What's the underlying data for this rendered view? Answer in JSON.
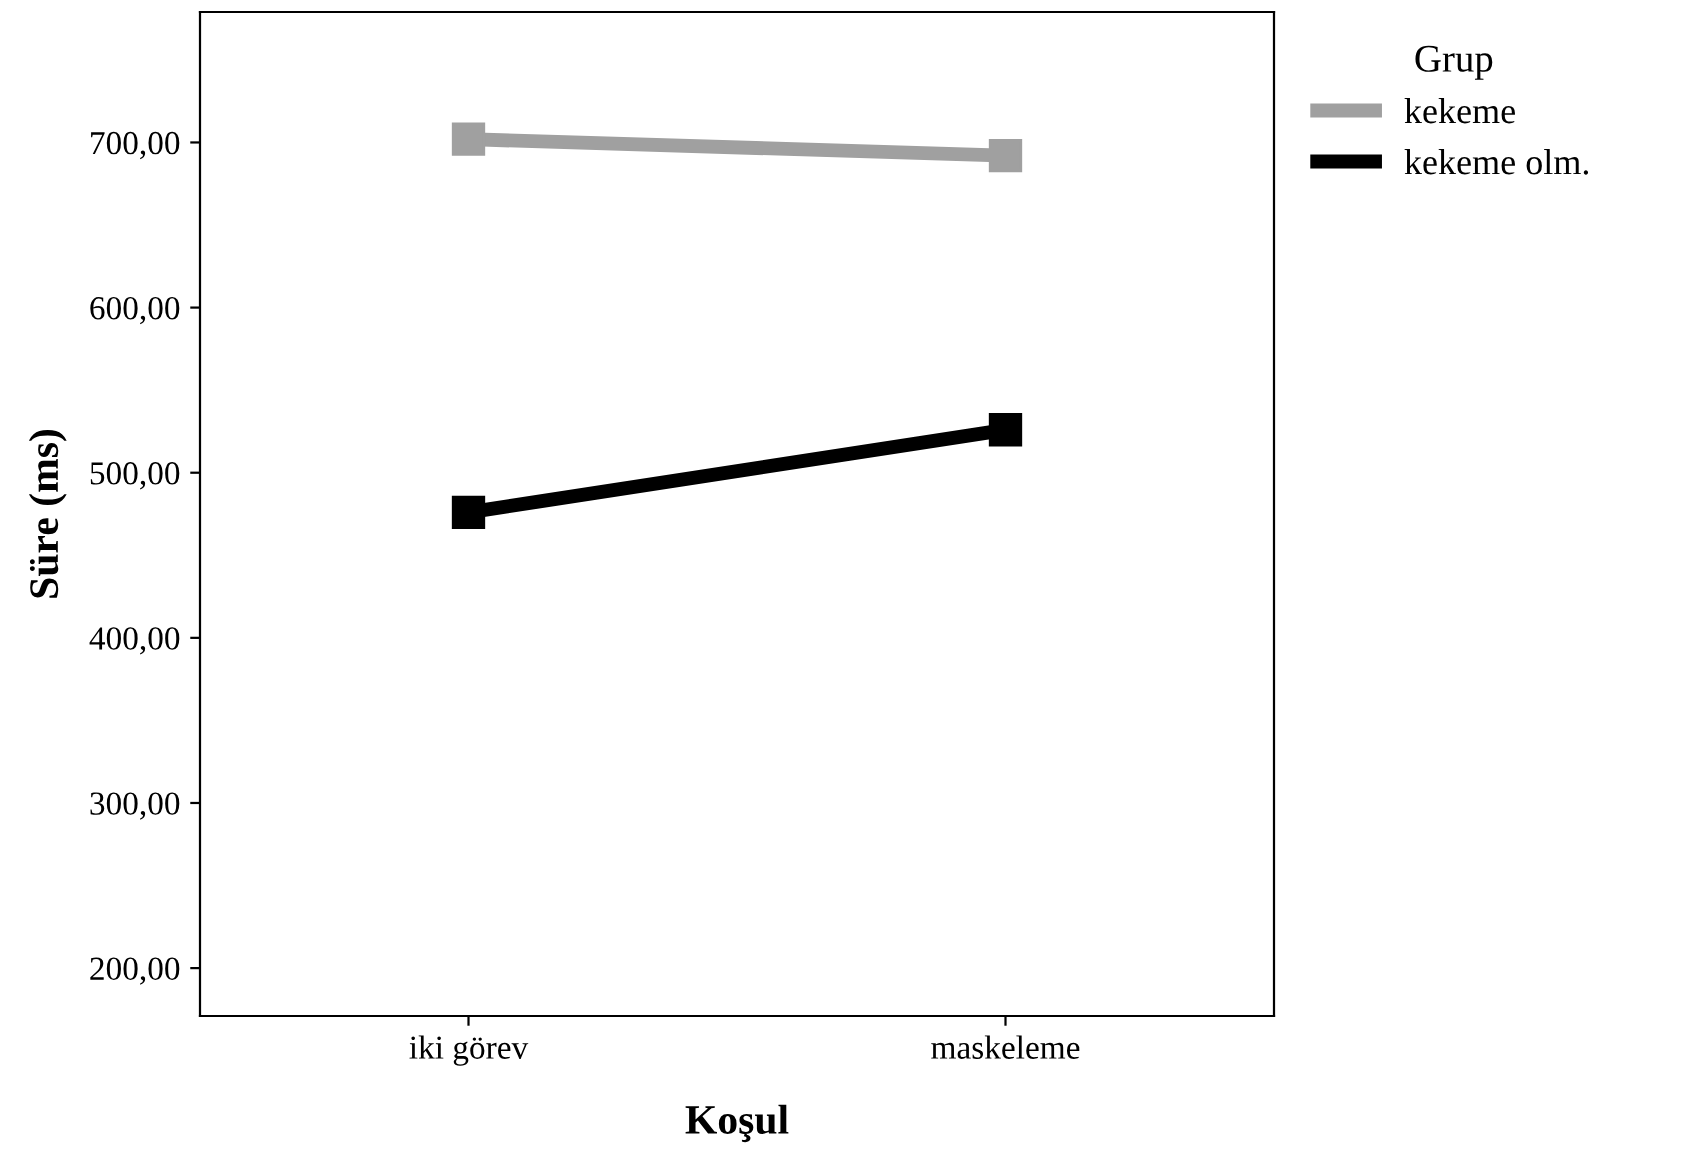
{
  "chart_data": {
    "type": "line",
    "xlabel": "Koşul",
    "ylabel": "Süre (ms)",
    "legend_title": "Grup",
    "categories": [
      "iki görev",
      "maskeleme"
    ],
    "series": [
      {
        "name": "kekeme",
        "color": "#a0a0a0",
        "values": [
          702,
          692
        ]
      },
      {
        "name": "kekeme olm.",
        "color": "#000000",
        "values": [
          476,
          526
        ]
      }
    ],
    "ylim": [
      171,
      779
    ],
    "yticks": [
      {
        "value": 200,
        "label": "200,00"
      },
      {
        "value": 300,
        "label": "300,00"
      },
      {
        "value": 400,
        "label": "400,00"
      },
      {
        "value": 500,
        "label": "500,00"
      },
      {
        "value": 600,
        "label": "600,00"
      },
      {
        "value": 700,
        "label": "700,00"
      }
    ],
    "marker": "square",
    "line_style": "solid",
    "legend": "top right",
    "grid": false
  }
}
